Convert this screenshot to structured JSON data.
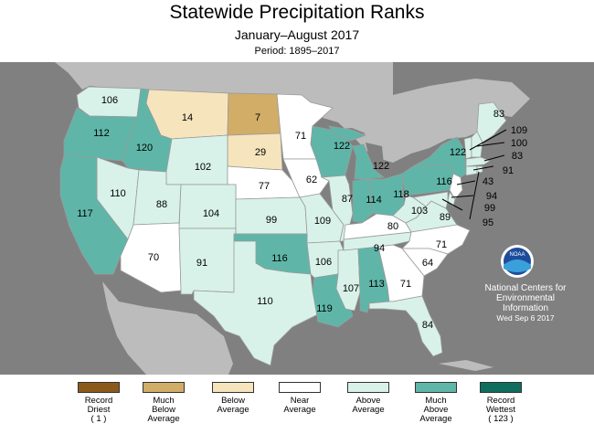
{
  "header": {
    "title": "Statewide Precipitation Ranks",
    "subtitle": "January–August 2017",
    "period": "Period: 1895–2017"
  },
  "colors": {
    "record_driest": "#8b5a1b",
    "much_below": "#d2ad68",
    "below": "#f6e4bd",
    "near": "#ffffff",
    "above": "#d8f2ea",
    "much_above": "#5fb6a8",
    "record_wettest": "#0f6e5e",
    "background": "#808080",
    "land_other": "#bcbcbc"
  },
  "states": [
    {
      "abbr": "WA",
      "rank": "106",
      "category": "above"
    },
    {
      "abbr": "OR",
      "rank": "112",
      "category": "much_above"
    },
    {
      "abbr": "ID",
      "rank": "120",
      "category": "much_above"
    },
    {
      "abbr": "MT",
      "rank": "14",
      "category": "below"
    },
    {
      "abbr": "ND",
      "rank": "7",
      "category": "much_below"
    },
    {
      "abbr": "MN",
      "rank": "71",
      "category": "near"
    },
    {
      "abbr": "SD",
      "rank": "29",
      "category": "below"
    },
    {
      "abbr": "WY",
      "rank": "102",
      "category": "above"
    },
    {
      "abbr": "NV",
      "rank": "110",
      "category": "above"
    },
    {
      "abbr": "CA",
      "rank": "117",
      "category": "much_above"
    },
    {
      "abbr": "UT",
      "rank": "88",
      "category": "above"
    },
    {
      "abbr": "CO",
      "rank": "104",
      "category": "above"
    },
    {
      "abbr": "NE",
      "rank": "77",
      "category": "near"
    },
    {
      "abbr": "IA",
      "rank": "62",
      "category": "near"
    },
    {
      "abbr": "WI",
      "rank": "122",
      "category": "much_above"
    },
    {
      "abbr": "MI",
      "rank": "122",
      "category": "much_above"
    },
    {
      "abbr": "AZ",
      "rank": "70",
      "category": "near"
    },
    {
      "abbr": "NM",
      "rank": "91",
      "category": "above"
    },
    {
      "abbr": "KS",
      "rank": "99",
      "category": "above"
    },
    {
      "abbr": "MO",
      "rank": "109",
      "category": "above"
    },
    {
      "abbr": "IL",
      "rank": "87",
      "category": "above"
    },
    {
      "abbr": "IN",
      "rank": "114",
      "category": "much_above"
    },
    {
      "abbr": "OH",
      "rank": "118",
      "category": "much_above"
    },
    {
      "abbr": "PA",
      "rank": "116",
      "category": "much_above"
    },
    {
      "abbr": "NY",
      "rank": "122",
      "category": "much_above"
    },
    {
      "abbr": "OK",
      "rank": "116",
      "category": "much_above"
    },
    {
      "abbr": "TX",
      "rank": "110",
      "category": "above"
    },
    {
      "abbr": "AR",
      "rank": "106",
      "category": "above"
    },
    {
      "abbr": "LA",
      "rank": "119",
      "category": "much_above"
    },
    {
      "abbr": "MS",
      "rank": "107",
      "category": "above"
    },
    {
      "abbr": "AL",
      "rank": "113",
      "category": "much_above"
    },
    {
      "abbr": "TN",
      "rank": "94",
      "category": "above"
    },
    {
      "abbr": "KY",
      "rank": "80",
      "category": "near"
    },
    {
      "abbr": "WV",
      "rank": "103",
      "category": "above"
    },
    {
      "abbr": "VA",
      "rank": "89",
      "category": "above"
    },
    {
      "abbr": "NC",
      "rank": "71",
      "category": "near"
    },
    {
      "abbr": "SC",
      "rank": "64",
      "category": "near"
    },
    {
      "abbr": "GA",
      "rank": "71",
      "category": "near"
    },
    {
      "abbr": "FL",
      "rank": "84",
      "category": "above"
    },
    {
      "abbr": "ME",
      "rank": "83",
      "category": "above"
    },
    {
      "abbr": "VT",
      "rank": "109",
      "category": "above"
    },
    {
      "abbr": "NH",
      "rank": "100",
      "category": "above"
    },
    {
      "abbr": "MA",
      "rank": "83",
      "category": "above"
    },
    {
      "abbr": "CT",
      "rank": "91",
      "category": "above"
    },
    {
      "abbr": "NJ",
      "rank": "43",
      "category": "near"
    },
    {
      "abbr": "DE",
      "rank": "94",
      "category": "above"
    },
    {
      "abbr": "MD",
      "rank": "99",
      "category": "above"
    },
    {
      "abbr": "RI",
      "rank": "95",
      "category": "above"
    }
  ],
  "logo": "NOAA",
  "credit": {
    "line1": "National Centers for",
    "line2": "Environmental",
    "line3": "Information",
    "date": "Wed Sep  6 2017"
  },
  "legend": [
    {
      "key": "record_driest",
      "label1": "Record",
      "label2": "Driest",
      "label3": "( 1 )"
    },
    {
      "key": "much_below",
      "label1": "Much",
      "label2": "Below",
      "label3": "Average"
    },
    {
      "key": "below",
      "label1": "Below",
      "label2": "Average",
      "label3": ""
    },
    {
      "key": "near",
      "label1": "Near",
      "label2": "Average",
      "label3": ""
    },
    {
      "key": "above",
      "label1": "Above",
      "label2": "Average",
      "label3": ""
    },
    {
      "key": "much_above",
      "label1": "Much",
      "label2": "Above",
      "label3": "Average"
    },
    {
      "key": "record_wettest",
      "label1": "Record",
      "label2": "Wettest",
      "label3": "( 123 )"
    }
  ]
}
